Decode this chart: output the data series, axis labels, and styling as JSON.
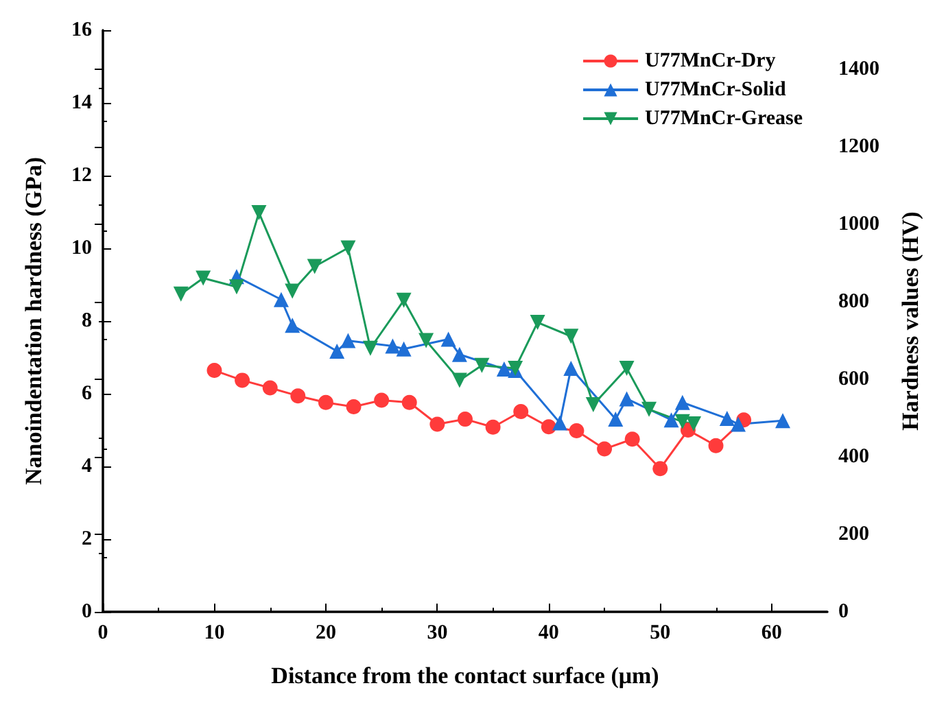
{
  "chart_data": {
    "type": "line",
    "xlabel": "Distance from the contact surface (μm)",
    "ylabel": "Nanoindentation hardness (GPa)",
    "y2label": "Hardness values (HV)",
    "series": [
      {
        "name": "U77MnCr-Dry",
        "color": "#ff3b3b",
        "marker": "circle",
        "x": [
          10,
          12.5,
          15,
          17.5,
          20,
          22.5,
          25,
          27.5,
          30,
          32.5,
          35,
          37.5,
          40,
          42.5,
          45,
          47.5,
          50,
          52.5,
          55,
          57.5
        ],
        "values": [
          6.64,
          6.37,
          6.16,
          5.94,
          5.76,
          5.64,
          5.82,
          5.76,
          5.16,
          5.3,
          5.08,
          5.51,
          5.09,
          4.98,
          4.48,
          4.75,
          3.94,
          5.0,
          4.57,
          5.28
        ]
      },
      {
        "name": "U77MnCr-Solid",
        "color": "#1f6fd6",
        "marker": "triangle",
        "x": [
          12,
          16,
          17,
          21,
          22,
          26,
          27,
          31,
          32,
          36,
          37,
          41,
          42,
          46,
          47,
          51,
          52,
          56,
          57,
          61
        ],
        "values": [
          9.22,
          8.59,
          7.88,
          7.17,
          7.46,
          7.31,
          7.23,
          7.5,
          7.08,
          6.68,
          6.64,
          5.2,
          6.7,
          5.3,
          5.86,
          5.28,
          5.76,
          5.32,
          5.16,
          5.26
        ]
      },
      {
        "name": "U77MnCr-Grease",
        "color": "#1a9a5a",
        "marker": "triangle-down",
        "x": [
          7,
          9,
          12,
          14,
          17,
          19,
          22,
          24,
          27,
          29,
          32,
          34,
          37,
          39,
          42,
          44,
          47,
          49,
          52,
          53
        ],
        "values": [
          8.74,
          9.18,
          8.94,
          10.98,
          8.82,
          9.5,
          10.01,
          7.25,
          8.57,
          7.46,
          6.37,
          6.78,
          6.7,
          7.96,
          7.58,
          5.7,
          6.7,
          5.57,
          5.23,
          5.17
        ]
      }
    ],
    "xlim": [
      0,
      65
    ],
    "xticks": [
      0,
      10,
      20,
      30,
      40,
      50,
      60
    ],
    "ylim": [
      0,
      16
    ],
    "yticks": [
      0,
      2,
      4,
      6,
      8,
      10,
      12,
      14,
      16
    ],
    "y2lim": [
      0,
      1500
    ],
    "y2ticks": [
      0,
      200,
      400,
      600,
      800,
      1000,
      1200,
      1400
    ],
    "legend": "top right",
    "grid": false,
    "line_style": "solid"
  }
}
